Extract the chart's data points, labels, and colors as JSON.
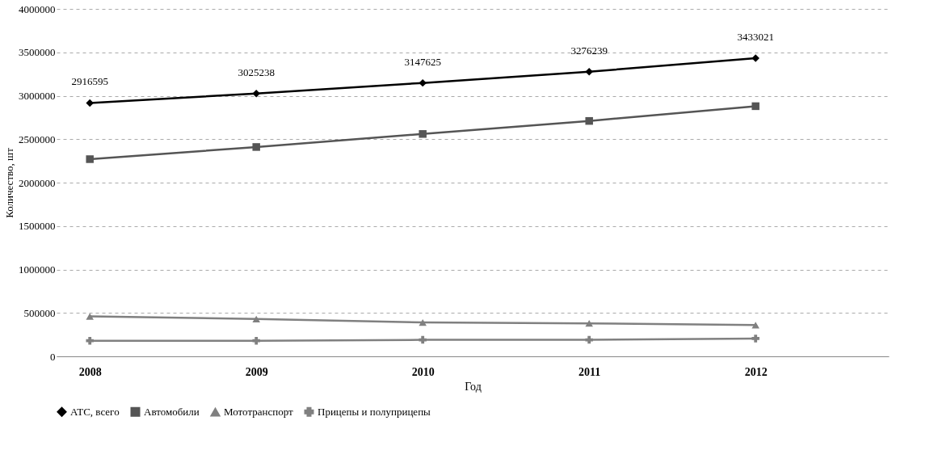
{
  "chart_data": {
    "type": "line",
    "xlabel": "Год",
    "ylabel": "Количество, шт",
    "categories": [
      "2008",
      "2009",
      "2010",
      "2011",
      "2012"
    ],
    "series": [
      {
        "name": "АТС, всего",
        "color": "#000000",
        "marker": "diamond",
        "values": [
          2916595,
          3025238,
          3147625,
          3276239,
          3433021
        ],
        "value_labels": [
          "2916595",
          "3025238",
          "3147625",
          "3276239",
          "3433021"
        ]
      },
      {
        "name": "Автомобили",
        "color": "#555555",
        "marker": "square",
        "values": [
          2270000,
          2410000,
          2560000,
          2710000,
          2880000
        ]
      },
      {
        "name": "Мототранспорт",
        "color": "#808080",
        "marker": "triangle",
        "values": [
          460000,
          430000,
          390000,
          380000,
          360000
        ]
      },
      {
        "name": "Прицепы и полуприцепы",
        "color": "#808080",
        "marker": "cross",
        "values": [
          180000,
          180000,
          190000,
          190000,
          205000
        ]
      }
    ],
    "ylim": [
      0,
      4000000
    ],
    "yticks": [
      0,
      500000,
      1000000,
      1500000,
      2000000,
      2500000,
      3000000,
      3500000,
      4000000
    ],
    "grid": "y",
    "legend": "bottom",
    "line_style": "solid"
  }
}
